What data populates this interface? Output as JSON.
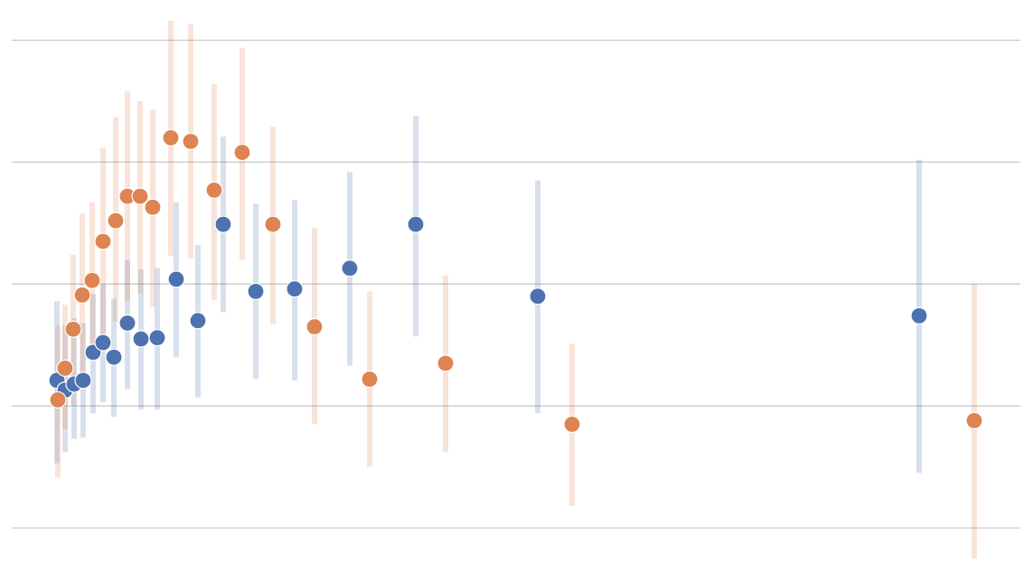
{
  "chart_data": {
    "type": "scatter",
    "xlim": [
      0,
      1143
    ],
    "ylim": [
      -0.37,
      4.33
    ],
    "yticks": [
      0,
      1,
      2,
      3,
      4
    ],
    "grid": true,
    "series": [
      {
        "color": "#4c72b0",
        "x": [
          63,
          72,
          82,
          92,
          103,
          114,
          126,
          141,
          156,
          174,
          195,
          219,
          247,
          283,
          326,
          387,
          460,
          595,
          1017
        ],
        "values": [
          1.21,
          1.13,
          1.18,
          1.21,
          1.44,
          1.52,
          1.4,
          1.68,
          1.55,
          1.56,
          2.04,
          1.7,
          2.49,
          1.94,
          1.96,
          2.13,
          2.49,
          1.9,
          1.74
        ],
        "lower": [
          0.53,
          0.62,
          0.73,
          0.74,
          0.94,
          1.03,
          0.91,
          1.14,
          0.97,
          0.97,
          1.4,
          1.07,
          1.77,
          1.22,
          1.21,
          1.33,
          1.57,
          0.94,
          0.45
        ],
        "upper": [
          1.86,
          1.66,
          1.72,
          1.68,
          1.92,
          2.0,
          1.88,
          2.2,
          2.12,
          2.13,
          2.67,
          2.32,
          3.21,
          2.66,
          2.69,
          2.92,
          3.38,
          2.85,
          3.02
        ]
      },
      {
        "color": "#dd8452",
        "x": [
          64,
          72,
          81,
          91,
          102,
          114,
          128,
          141,
          155,
          169,
          189,
          211,
          237,
          268,
          302,
          348,
          409,
          493,
          633,
          1078
        ],
        "values": [
          1.05,
          1.31,
          1.63,
          1.91,
          2.03,
          2.35,
          2.52,
          2.72,
          2.72,
          2.63,
          3.2,
          3.17,
          2.77,
          3.08,
          2.49,
          1.65,
          1.22,
          1.35,
          0.85,
          0.88
        ],
        "lower": [
          0.41,
          0.81,
          1.01,
          1.26,
          1.39,
          1.59,
          1.69,
          1.86,
          1.92,
          1.81,
          2.23,
          2.21,
          1.87,
          2.2,
          1.67,
          0.85,
          0.5,
          0.62,
          0.18,
          -0.25
        ],
        "upper": [
          1.66,
          1.83,
          2.24,
          2.58,
          2.67,
          3.12,
          3.37,
          3.58,
          3.5,
          3.43,
          4.16,
          4.13,
          3.64,
          3.94,
          3.29,
          2.46,
          1.94,
          2.07,
          1.51,
          2.0
        ]
      }
    ]
  }
}
